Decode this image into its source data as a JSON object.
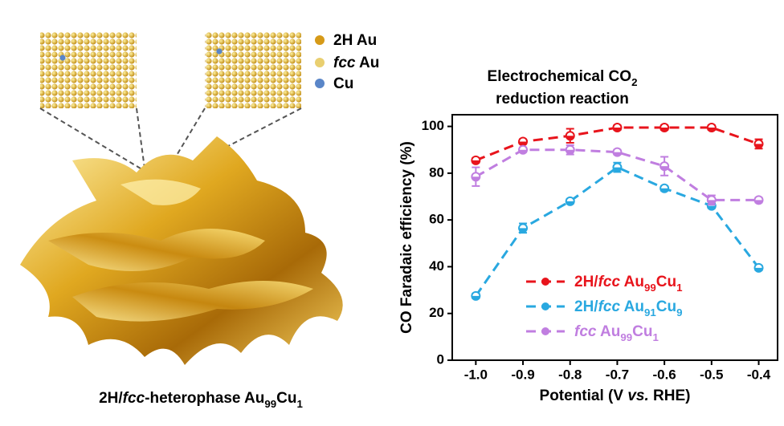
{
  "illustration": {
    "legend": [
      "2H  Au",
      "fcc Au",
      "Cu"
    ],
    "caption": "2H/fcc-heterophase Au99Cu1"
  },
  "chart_data": {
    "type": "line",
    "title": [
      "Electrochemical CO2",
      "reduction reaction"
    ],
    "x_label": "Potential (V vs. RHE)",
    "y_label": "CO Faradaic efficiency (%)",
    "x": [
      -1.0,
      -0.9,
      -0.8,
      -0.7,
      -0.6,
      -0.5,
      -0.4
    ],
    "series": [
      {
        "name": "2H/fcc Au99Cu1",
        "color": "#e8141c",
        "values": [
          85.5,
          93.5,
          96,
          99.5,
          99.5,
          99.5,
          92.5
        ],
        "errors": [
          1,
          1,
          3,
          1,
          1,
          1,
          2
        ]
      },
      {
        "name": "2H/fcc Au91Cu9",
        "color": "#29a8e0",
        "values": [
          27.5,
          56.5,
          68,
          82.5,
          73.5,
          66,
          39.5
        ],
        "errors": [
          1,
          2,
          1,
          2,
          1,
          1,
          1
        ]
      },
      {
        "name": "fcc Au99Cu1",
        "color": "#c07ee0",
        "values": [
          78.5,
          90,
          90,
          89,
          83,
          68.5,
          68.5
        ],
        "errors": [
          4,
          1,
          2,
          1,
          4,
          2,
          1
        ]
      }
    ],
    "xlim": [
      -1.05,
      -0.36
    ],
    "ylim": [
      0,
      105
    ],
    "xticks": [
      {
        "value": -1.0,
        "label": "-1.0"
      },
      -0.9,
      -0.8,
      -0.7,
      -0.6,
      -0.5,
      -0.4
    ],
    "yticks": [
      0,
      20,
      40,
      60,
      80,
      100
    ]
  }
}
